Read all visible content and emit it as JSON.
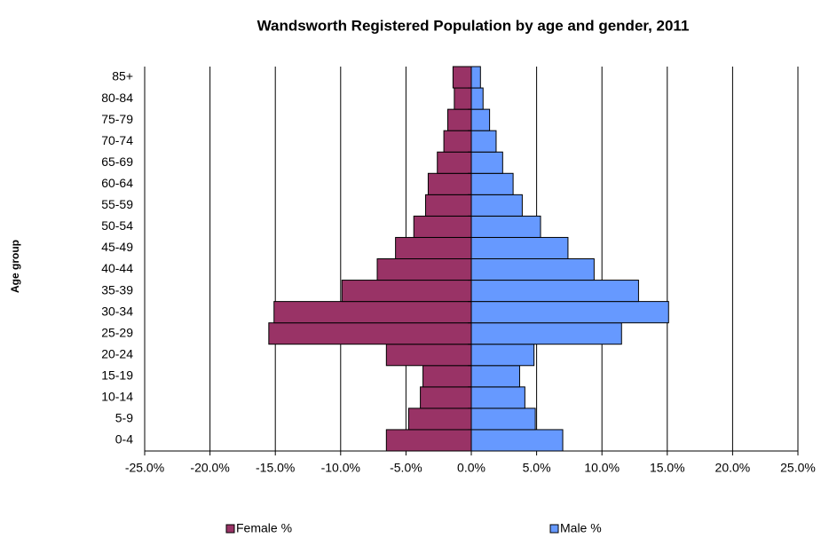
{
  "chart_data": {
    "type": "bar",
    "horizontal": true,
    "title": "Wandsworth Registered Population by age and gender, 2011",
    "y_label": "Age group",
    "categories": [
      "0-4",
      "5-9",
      "10-14",
      "15-19",
      "20-24",
      "25-29",
      "30-34",
      "35-39",
      "40-44",
      "45-49",
      "50-54",
      "55-59",
      "60-64",
      "65-69",
      "70-74",
      "75-79",
      "80-84",
      "85+"
    ],
    "series": [
      {
        "name": "Female %",
        "color": "#993366",
        "values": [
          -6.5,
          -4.8,
          -3.9,
          -3.7,
          -6.5,
          -15.5,
          -15.1,
          -9.9,
          -7.2,
          -5.8,
          -4.4,
          -3.5,
          -3.3,
          -2.6,
          -2.1,
          -1.8,
          -1.3,
          -1.4
        ]
      },
      {
        "name": "Male %",
        "color": "#6699ff",
        "values": [
          7.0,
          4.9,
          4.1,
          3.7,
          4.8,
          11.5,
          15.1,
          12.8,
          9.4,
          7.4,
          5.3,
          3.9,
          3.2,
          2.4,
          1.9,
          1.4,
          0.9,
          0.7
        ]
      }
    ],
    "xlim": [
      -25,
      25
    ],
    "xticks": [
      {
        "value": -25,
        "label": "-25.0%"
      },
      {
        "value": -20,
        "label": "-20.0%"
      },
      {
        "value": -15,
        "label": "-15.0%"
      },
      {
        "value": -10,
        "label": "-10.0%"
      },
      {
        "value": -5,
        "label": "-5.0%"
      },
      {
        "value": 0,
        "label": "0.0%"
      },
      {
        "value": 5,
        "label": "5.0%"
      },
      {
        "value": 10,
        "label": "10.0%"
      },
      {
        "value": 15,
        "label": "15.0%"
      },
      {
        "value": 20,
        "label": "20.0%"
      },
      {
        "value": 25,
        "label": "25.0%"
      }
    ],
    "grid": true,
    "legend": "bottom"
  }
}
